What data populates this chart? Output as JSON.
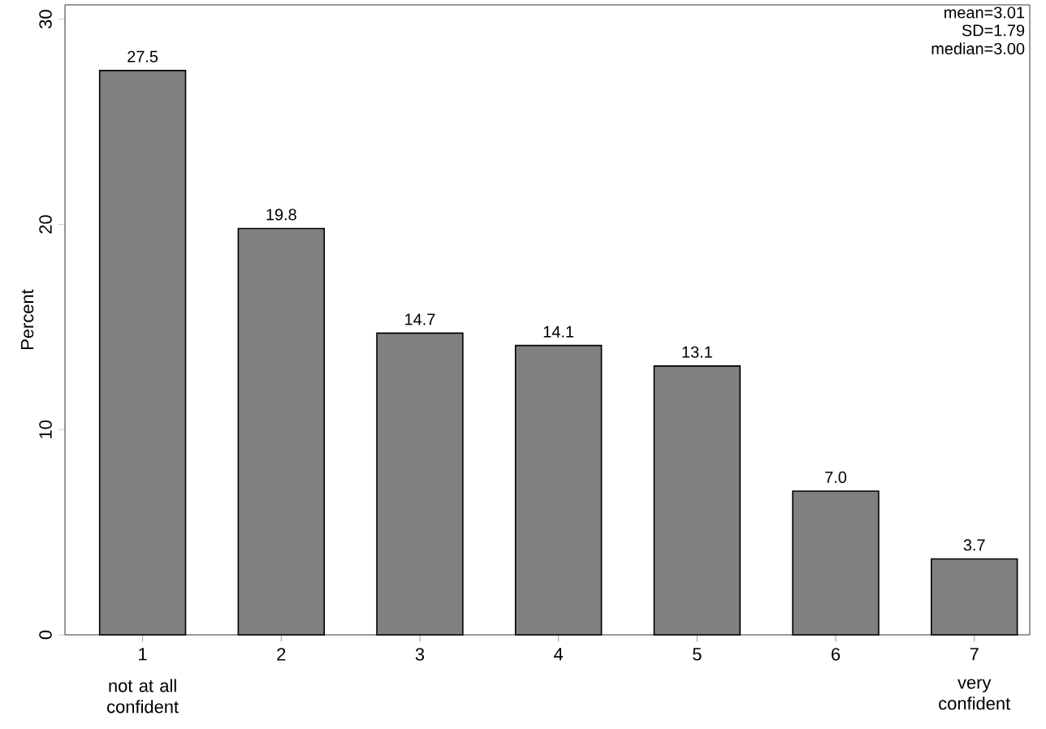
{
  "chart_data": {
    "type": "bar",
    "ylabel": "Percent",
    "categories": [
      "1",
      "2",
      "3",
      "4",
      "5",
      "6",
      "7"
    ],
    "values": [
      27.5,
      19.8,
      14.7,
      14.1,
      13.1,
      7.0,
      3.7
    ],
    "value_labels": [
      "27.5",
      "19.8",
      "14.7",
      "14.1",
      "13.1",
      "7.0",
      "3.7"
    ],
    "color": "#808080",
    "grid": false,
    "ylim": [
      0,
      30.7
    ],
    "yticks": [
      0,
      10,
      20,
      30
    ],
    "annotations": [
      "mean=3.01",
      "SD=1.79",
      "median=3.00",
      "not at all confident",
      "very confident"
    ]
  }
}
